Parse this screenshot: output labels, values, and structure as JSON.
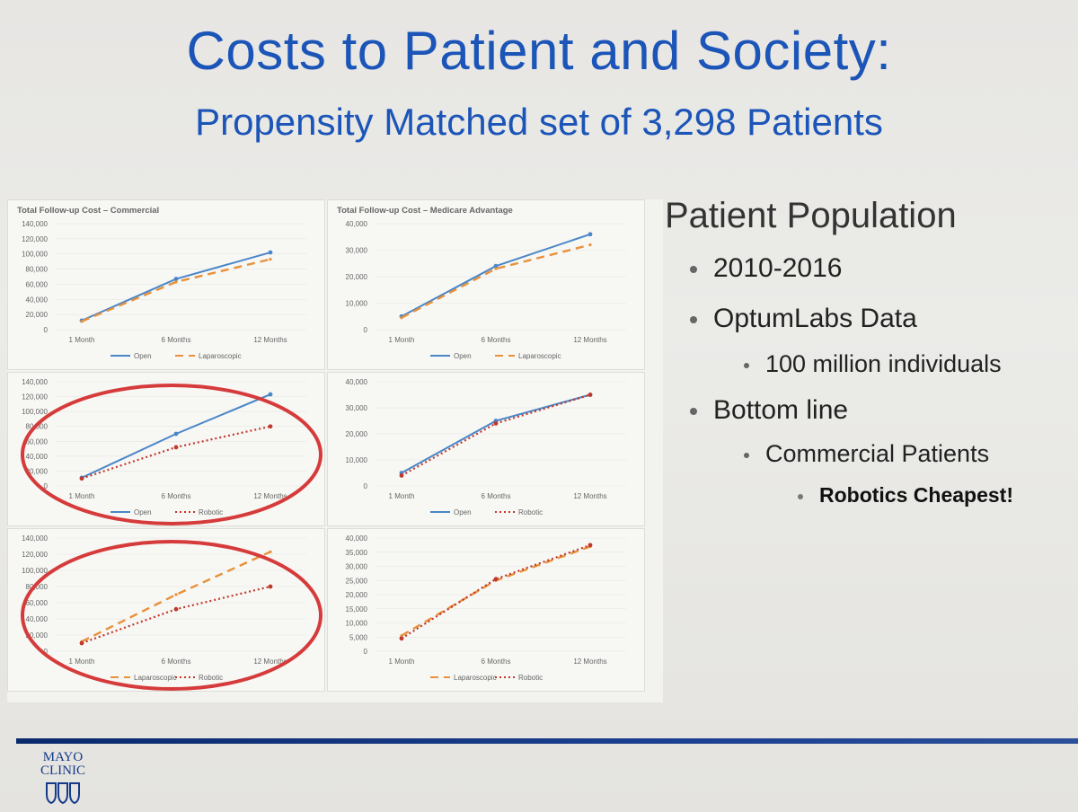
{
  "slide": {
    "title": "Costs to Patient and Society:",
    "subtitle": "Propensity Matched set of 3,298 Patients"
  },
  "right_panel": {
    "heading": "Patient Population",
    "bullets": [
      {
        "level": 1,
        "text": "2010-2016"
      },
      {
        "level": 1,
        "text": "OptumLabs Data"
      },
      {
        "level": 2,
        "text": "100 million individuals"
      },
      {
        "level": 1,
        "text": "Bottom line"
      },
      {
        "level": 2,
        "text": "Commercial Patients"
      },
      {
        "level": 3,
        "text": "Robotics Cheapest!"
      }
    ]
  },
  "logo": {
    "line1": "MAYO",
    "line2": "CLINIC",
    "icon": "mayo-shield-icon"
  },
  "colors": {
    "title_blue": "#1c55b8",
    "open": "#4a86c8",
    "laparoscopic": "#e8913a",
    "robotic": "#c0392b",
    "circle": "#d63b3b",
    "footer_bar": "#14357e"
  },
  "chart_data": [
    {
      "type": "line",
      "title": "Total Follow-up Cost – Commercial",
      "categories": [
        "1 Month",
        "6 Months",
        "12 Months"
      ],
      "yticks": [
        "0",
        "20,000",
        "40,000",
        "60,000",
        "80,000",
        "100,000",
        "120,000",
        "140,000"
      ],
      "ylim": [
        0,
        140000
      ],
      "series": [
        {
          "name": "Open",
          "style": "open",
          "values": [
            12000,
            67000,
            102000
          ]
        },
        {
          "name": "Laparoscopic",
          "style": "laparoscopic",
          "values": [
            11000,
            63000,
            93000
          ]
        }
      ]
    },
    {
      "type": "line",
      "title": "Total Follow-up Cost – Medicare Advantage",
      "categories": [
        "1 Month",
        "6 Months",
        "12 Months"
      ],
      "yticks": [
        "0",
        "10,000",
        "20,000",
        "30,000",
        "40,000"
      ],
      "ylim": [
        0,
        40000
      ],
      "series": [
        {
          "name": "Open",
          "style": "open",
          "values": [
            5000,
            24000,
            36000
          ]
        },
        {
          "name": "Laparoscopic",
          "style": "laparoscopic",
          "values": [
            4500,
            23000,
            32000
          ]
        }
      ]
    },
    {
      "type": "line",
      "title": "",
      "categories": [
        "1 Month",
        "6 Months",
        "12 Months"
      ],
      "yticks": [
        "0",
        "20,000",
        "40,000",
        "60,000",
        "80,000",
        "100,000",
        "120,000",
        "140,000"
      ],
      "ylim": [
        0,
        140000
      ],
      "highlighted": true,
      "series": [
        {
          "name": "Open",
          "style": "open",
          "values": [
            11000,
            70000,
            123000
          ]
        },
        {
          "name": "Robotic",
          "style": "robotic",
          "values": [
            10000,
            52000,
            80000
          ]
        }
      ]
    },
    {
      "type": "line",
      "title": "",
      "categories": [
        "1 Month",
        "6 Months",
        "12 Months"
      ],
      "yticks": [
        "0",
        "10,000",
        "20,000",
        "30,000",
        "40,000"
      ],
      "ylim": [
        0,
        40000
      ],
      "series": [
        {
          "name": "Open",
          "style": "open",
          "values": [
            5000,
            25000,
            35000
          ]
        },
        {
          "name": "Robotic",
          "style": "robotic",
          "values": [
            4000,
            24000,
            35000
          ]
        }
      ]
    },
    {
      "type": "line",
      "title": "",
      "categories": [
        "1 Month",
        "6 Months",
        "12 Months"
      ],
      "yticks": [
        "0",
        "20,000",
        "40,000",
        "60,000",
        "80,000",
        "100,000",
        "120,000",
        "140,000"
      ],
      "ylim": [
        0,
        140000
      ],
      "highlighted": true,
      "series": [
        {
          "name": "Laparoscopic",
          "style": "laparoscopic",
          "values": [
            12000,
            70000,
            123000
          ]
        },
        {
          "name": "Robotic",
          "style": "robotic",
          "values": [
            10000,
            52000,
            80000
          ]
        }
      ]
    },
    {
      "type": "line",
      "title": "",
      "categories": [
        "1 Month",
        "6 Months",
        "12 Months"
      ],
      "yticks": [
        "0",
        "5,000",
        "10,000",
        "15,000",
        "20,000",
        "25,000",
        "30,000",
        "35,000",
        "40,000"
      ],
      "ylim": [
        0,
        40000
      ],
      "series": [
        {
          "name": "Laparoscopic",
          "style": "laparoscopic",
          "values": [
            5500,
            25000,
            37000
          ]
        },
        {
          "name": "Robotic",
          "style": "robotic",
          "values": [
            4500,
            25500,
            37500
          ]
        }
      ]
    }
  ]
}
